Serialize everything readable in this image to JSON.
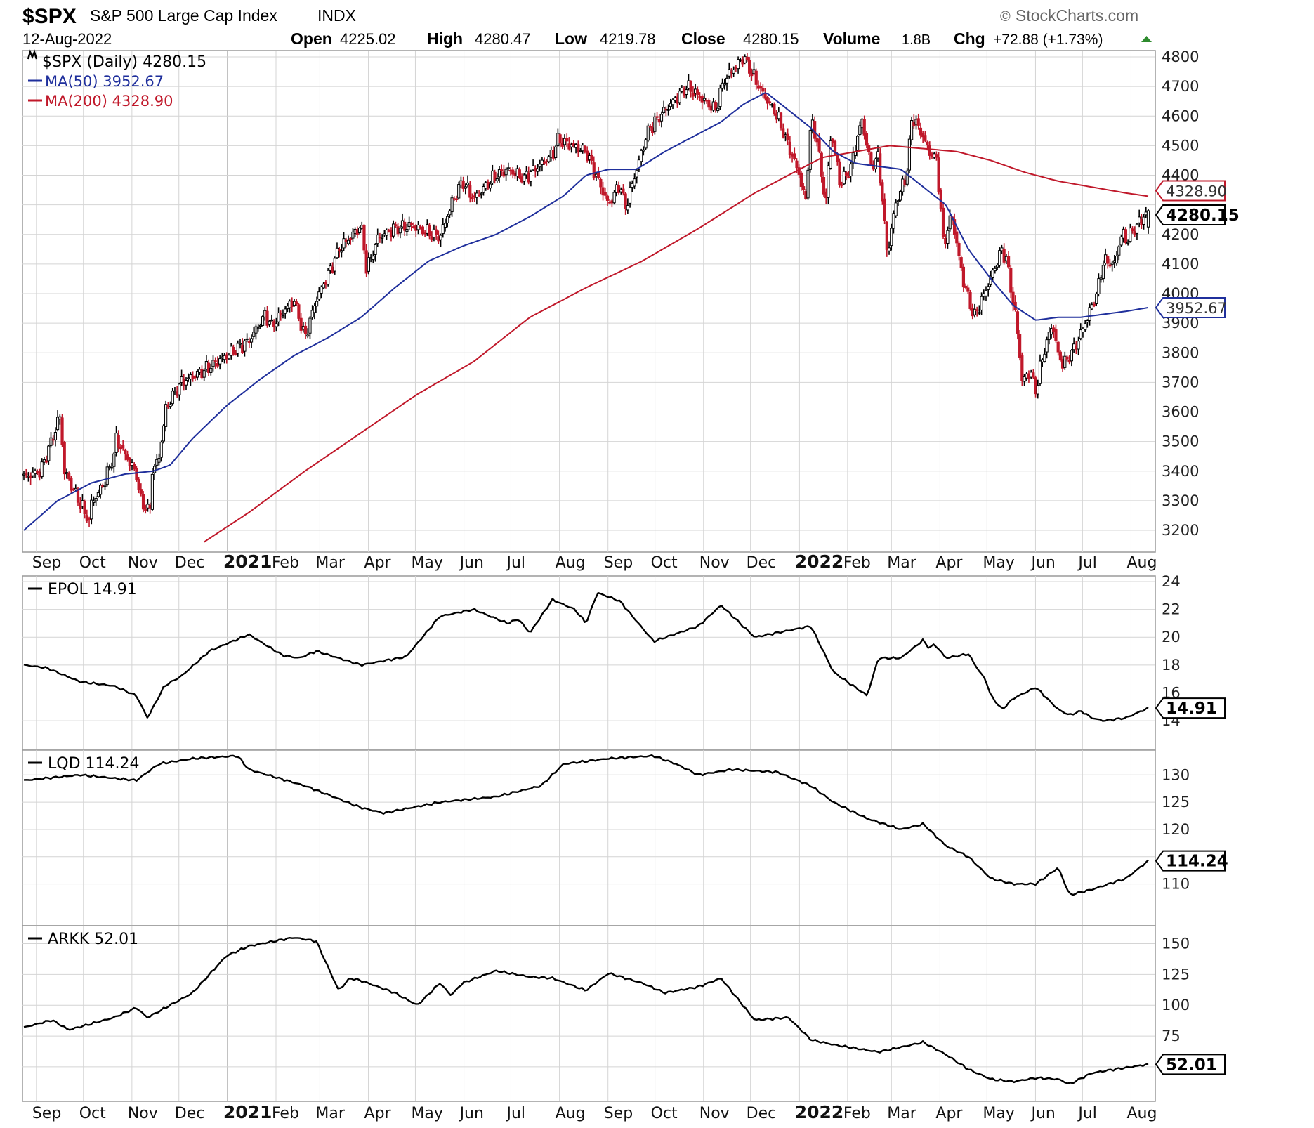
{
  "chart_data": {
    "type": "financial-multi-panel",
    "header": {
      "symbol": "$SPX",
      "name": "S&P 500 Large Cap Index",
      "exchange": "INDX",
      "date": "12-Aug-2022",
      "brand": "StockCharts.com",
      "brand_mark": "©",
      "open_label": "Open",
      "open": "4225.02",
      "high_label": "High",
      "high": "4280.47",
      "low_label": "Low",
      "low": "4219.78",
      "close_label": "Close",
      "close": "4280.15",
      "volume_label": "Volume",
      "volume": "1.8B",
      "chg_label": "Chg",
      "chg": "+72.88 (+1.73%)"
    },
    "colors": {
      "up": "#000000",
      "down": "#c0182a",
      "ma50": "#1f2f9c",
      "ma200": "#c0182a",
      "grid": "#d4d4d4",
      "frame": "#9a9a9a"
    },
    "x_axis": {
      "months": [
        "Sep",
        "Oct",
        "Nov",
        "Dec",
        "2021",
        "Feb",
        "Mar",
        "Apr",
        "May",
        "Jun",
        "Jul",
        "Aug",
        "Sep",
        "Oct",
        "Nov",
        "Dec",
        "2022",
        "Feb",
        "Mar",
        "Apr",
        "May",
        "Jun",
        "Jul",
        "Aug"
      ],
      "bold_labels": [
        "2021",
        "2022"
      ],
      "start": "2020-08-24",
      "end": "2022-08-12"
    },
    "panels": [
      {
        "id": "spx",
        "type": "candlestick",
        "legend": [
          {
            "label": "$SPX (Daily) 4280.15",
            "kind": "price"
          },
          {
            "label": "MA(50) 3952.67",
            "kind": "ma50"
          },
          {
            "label": "MA(200) 4328.90",
            "kind": "ma200"
          }
        ],
        "ylim": [
          3160,
          4840
        ],
        "yticks": [
          3200,
          3300,
          3400,
          3500,
          3600,
          3700,
          3800,
          3900,
          4000,
          4100,
          4200,
          4300,
          4400,
          4500,
          4600,
          4700,
          4800
        ],
        "ytick_labels": [
          "3200",
          "3300",
          "3400",
          "3500",
          "3600",
          "3700",
          "3800",
          "3900",
          "4000",
          "4100",
          "4200",
          "",
          "4400",
          "4500",
          "4600",
          "4700",
          "4800"
        ],
        "last_value": "4280.15",
        "badges": [
          {
            "label": "4328.90",
            "value": 4328.9,
            "style": "ma200"
          },
          {
            "label": "4280.15",
            "value": 4280.15,
            "style": "price"
          },
          {
            "label": "3952.67",
            "value": 3952.67,
            "style": "ma50"
          }
        ],
        "anchors_t": [
          0.0,
          0.015,
          0.028,
          0.032,
          0.036,
          0.045,
          0.058,
          0.06,
          0.07,
          0.08,
          0.082,
          0.1,
          0.104,
          0.112,
          0.114,
          0.12,
          0.125,
          0.127,
          0.14,
          0.16,
          0.18,
          0.2,
          0.215,
          0.22,
          0.24,
          0.25,
          0.26,
          0.275,
          0.28,
          0.29,
          0.3,
          0.305,
          0.315,
          0.33,
          0.345,
          0.37,
          0.38,
          0.39,
          0.4,
          0.42,
          0.43,
          0.445,
          0.47,
          0.475,
          0.5,
          0.52,
          0.53,
          0.535,
          0.555,
          0.57,
          0.59,
          0.615,
          0.6225,
          0.64,
          0.655,
          0.67,
          0.69,
          0.695,
          0.7,
          0.705,
          0.713,
          0.718,
          0.726,
          0.735,
          0.745,
          0.75,
          0.753,
          0.76,
          0.768,
          0.775,
          0.785,
          0.79,
          0.8,
          0.805,
          0.812,
          0.818,
          0.825,
          0.835,
          0.845,
          0.85,
          0.87,
          0.875,
          0.878,
          0.883,
          0.888,
          0.895,
          0.9,
          0.905,
          0.91,
          0.915,
          0.92,
          0.925,
          0.935,
          0.945,
          0.955,
          0.96,
          0.97,
          0.973,
          0.977,
          0.98,
          0.99,
          1.0
        ],
        "anchors_v": [
          3380,
          3400,
          3540,
          3590,
          3400,
          3330,
          3230,
          3290,
          3350,
          3450,
          3510,
          3390,
          3300,
          3260,
          3400,
          3440,
          3580,
          3620,
          3700,
          3740,
          3790,
          3840,
          3930,
          3890,
          3980,
          3850,
          3980,
          4100,
          4150,
          4190,
          4230,
          4080,
          4190,
          4220,
          4230,
          4190,
          4300,
          4380,
          4320,
          4400,
          4420,
          4390,
          4470,
          4520,
          4480,
          4300,
          4370,
          4290,
          4550,
          4620,
          4700,
          4620,
          4720,
          4800,
          4690,
          4600,
          4400,
          4300,
          4580,
          4530,
          4300,
          4550,
          4370,
          4420,
          4590,
          4500,
          4430,
          4460,
          4130,
          4300,
          4400,
          4600,
          4530,
          4480,
          4450,
          4160,
          4270,
          4050,
          3920,
          3960,
          4150,
          4100,
          4010,
          3900,
          3700,
          3740,
          3670,
          3770,
          3840,
          3900,
          3790,
          3760,
          3820,
          3910,
          4010,
          4110,
          4100,
          4150,
          4210,
          4180,
          4230,
          4280
        ],
        "ma50": {
          "t": [
            0,
            0.03,
            0.06,
            0.09,
            0.115,
            0.13,
            0.15,
            0.18,
            0.21,
            0.24,
            0.27,
            0.3,
            0.33,
            0.36,
            0.39,
            0.42,
            0.45,
            0.48,
            0.5,
            0.52,
            0.545,
            0.57,
            0.6,
            0.62,
            0.64,
            0.66,
            0.68,
            0.7,
            0.72,
            0.74,
            0.76,
            0.78,
            0.8,
            0.82,
            0.84,
            0.86,
            0.88,
            0.9,
            0.92,
            0.94,
            0.96,
            0.98,
            1.0
          ],
          "v": [
            3200,
            3300,
            3360,
            3390,
            3400,
            3420,
            3510,
            3620,
            3710,
            3790,
            3850,
            3920,
            4020,
            4110,
            4160,
            4200,
            4260,
            4330,
            4400,
            4420,
            4420,
            4480,
            4540,
            4580,
            4640,
            4680,
            4620,
            4560,
            4480,
            4440,
            4430,
            4420,
            4360,
            4300,
            4150,
            4050,
            3960,
            3910,
            3920,
            3920,
            3930,
            3940,
            3952.67
          ]
        },
        "ma200": {
          "t": [
            0.16,
            0.2,
            0.25,
            0.3,
            0.35,
            0.4,
            0.45,
            0.5,
            0.55,
            0.6,
            0.65,
            0.68,
            0.71,
            0.74,
            0.77,
            0.8,
            0.83,
            0.86,
            0.89,
            0.92,
            0.95,
            0.98,
            1.0
          ],
          "v": [
            3160,
            3260,
            3400,
            3530,
            3660,
            3770,
            3920,
            4020,
            4110,
            4220,
            4340,
            4400,
            4460,
            4480,
            4500,
            4490,
            4480,
            4450,
            4410,
            4380,
            4360,
            4340,
            4328.9
          ]
        }
      },
      {
        "id": "epol",
        "type": "line",
        "legend": "EPOL 14.91",
        "ylim": [
          13,
          24
        ],
        "yticks": [
          14,
          16,
          18,
          20,
          22,
          24
        ],
        "ytick_labels": [
          "14",
          "16",
          "18",
          "20",
          "22",
          "24"
        ],
        "last_value": "14.91",
        "badge": {
          "label": "14.91",
          "value": 14.91
        },
        "t": [
          0,
          0.02,
          0.05,
          0.08,
          0.1,
          0.11,
          0.125,
          0.14,
          0.165,
          0.2,
          0.23,
          0.245,
          0.26,
          0.3,
          0.34,
          0.37,
          0.4,
          0.43,
          0.44,
          0.45,
          0.47,
          0.49,
          0.5,
          0.51,
          0.53,
          0.56,
          0.6,
          0.62,
          0.65,
          0.7,
          0.72,
          0.75,
          0.76,
          0.78,
          0.8,
          0.805,
          0.81,
          0.82,
          0.84,
          0.85,
          0.855,
          0.86,
          0.87,
          0.88,
          0.9,
          0.92,
          0.93,
          0.94,
          0.95,
          0.96,
          0.98,
          1.0
        ],
        "v": [
          18,
          17.8,
          16.8,
          16.5,
          15.8,
          14.2,
          16.5,
          17.2,
          19,
          20.2,
          18.7,
          18.5,
          19,
          18,
          18.6,
          21.5,
          22,
          21,
          21.3,
          20.3,
          22.7,
          22,
          21,
          23.2,
          22.6,
          19.7,
          20.8,
          22.3,
          20,
          20.8,
          17.5,
          15.8,
          18.5,
          18.5,
          19.8,
          19.2,
          19.5,
          18.5,
          18.8,
          17.5,
          17,
          15.8,
          14.8,
          15.6,
          16.4,
          14.8,
          14.4,
          14.7,
          14.2,
          14,
          14.2,
          14.91
        ]
      },
      {
        "id": "lqd",
        "type": "line",
        "legend": "LQD 114.24",
        "ylim": [
          106,
          135
        ],
        "yticks": [
          110,
          115,
          120,
          125,
          130
        ],
        "ytick_labels": [
          "110",
          "",
          "120",
          "125",
          "130"
        ],
        "last_value": "114.24",
        "badge": {
          "label": "114.24",
          "value": 114.24
        },
        "t": [
          0,
          0.05,
          0.1,
          0.12,
          0.15,
          0.19,
          0.2,
          0.25,
          0.3,
          0.32,
          0.37,
          0.42,
          0.46,
          0.48,
          0.52,
          0.56,
          0.58,
          0.6,
          0.63,
          0.67,
          0.7,
          0.72,
          0.75,
          0.78,
          0.8,
          0.82,
          0.84,
          0.86,
          0.88,
          0.9,
          0.92,
          0.93,
          0.95,
          0.98,
          1.0
        ],
        "v": [
          129,
          130,
          129,
          132,
          133,
          133.5,
          131,
          128,
          124,
          123,
          125,
          126,
          128,
          132,
          133,
          133.5,
          132,
          130,
          131,
          130.5,
          128,
          125,
          122,
          120,
          121,
          117,
          115,
          111,
          110,
          110,
          113,
          108,
          109,
          111,
          114.24
        ]
      },
      {
        "id": "arkk",
        "type": "line",
        "legend": "ARKK 52.01",
        "ylim": [
          30,
          160
        ],
        "yticks": [
          50,
          75,
          100,
          125,
          150
        ],
        "ytick_labels": [
          "",
          "75",
          "100",
          "125",
          "150"
        ],
        "last_value": "52.01",
        "badge": {
          "label": "52.01",
          "value": 52.01
        },
        "t": [
          0,
          0.025,
          0.04,
          0.08,
          0.1,
          0.11,
          0.15,
          0.18,
          0.2,
          0.24,
          0.26,
          0.28,
          0.29,
          0.3,
          0.33,
          0.35,
          0.37,
          0.38,
          0.39,
          0.42,
          0.45,
          0.47,
          0.5,
          0.52,
          0.55,
          0.57,
          0.6,
          0.62,
          0.65,
          0.68,
          0.7,
          0.72,
          0.76,
          0.8,
          0.82,
          0.84,
          0.86,
          0.88,
          0.9,
          0.92,
          0.93,
          0.95,
          0.97,
          1.0
        ],
        "v": [
          82,
          88,
          80,
          90,
          98,
          90,
          110,
          140,
          148,
          155,
          152,
          112,
          122,
          120,
          110,
          100,
          118,
          108,
          118,
          128,
          123,
          122,
          112,
          126,
          118,
          110,
          115,
          122,
          88,
          90,
          72,
          68,
          62,
          70,
          60,
          48,
          40,
          38,
          41,
          40,
          36,
          45,
          48,
          52.01
        ]
      }
    ]
  }
}
